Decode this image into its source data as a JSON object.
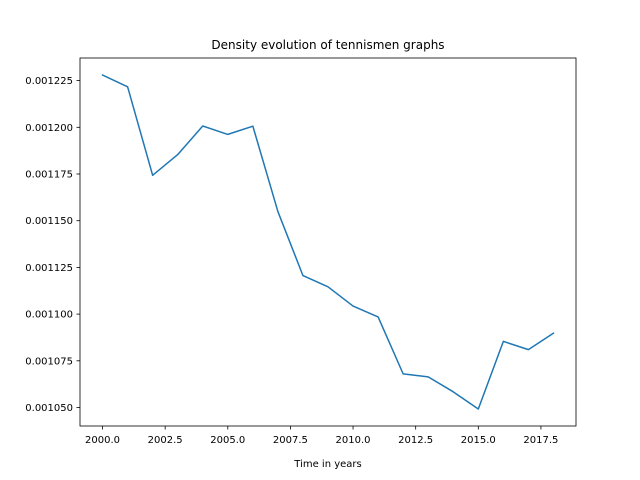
{
  "chart_data": {
    "type": "line",
    "title": "Density evolution of tennismen graphs",
    "xlabel": "Time in years",
    "ylabel": "",
    "xlim": [
      1999.1,
      2018.9
    ],
    "ylim": [
      0.0010401,
      0.0012371
    ],
    "xticks": [
      2000.0,
      2002.5,
      2005.0,
      2007.5,
      2010.0,
      2012.5,
      2015.0,
      2017.5
    ],
    "xtick_labels": [
      "2000.0",
      "2002.5",
      "2005.0",
      "2007.5",
      "2010.0",
      "2012.5",
      "2015.0",
      "2017.5"
    ],
    "yticks": [
      0.00105,
      0.001075,
      0.0011,
      0.001125,
      0.00115,
      0.001175,
      0.0012,
      0.001225
    ],
    "ytick_labels": [
      "0.001050",
      "0.001075",
      "0.001100",
      "0.001125",
      "0.001150",
      "0.001175",
      "0.001200",
      "0.001225"
    ],
    "grid": false,
    "line_color": "#1f77b4",
    "series": [
      {
        "x": [
          2000,
          2001,
          2002,
          2003,
          2004,
          2005,
          2006,
          2007,
          2008,
          2009,
          2010,
          2011,
          2012,
          2013,
          2014,
          2015,
          2016,
          2017,
          2018
        ],
        "values": [
          0.001228,
          0.0012217,
          0.0011743,
          0.0011854,
          0.0012007,
          0.0011962,
          0.0012006,
          0.0011549,
          0.0011206,
          0.0011146,
          0.0011043,
          0.0010985,
          0.001068,
          0.0010664,
          0.0010584,
          0.0010492,
          0.0010854,
          0.001081,
          0.0010898
        ]
      }
    ]
  }
}
